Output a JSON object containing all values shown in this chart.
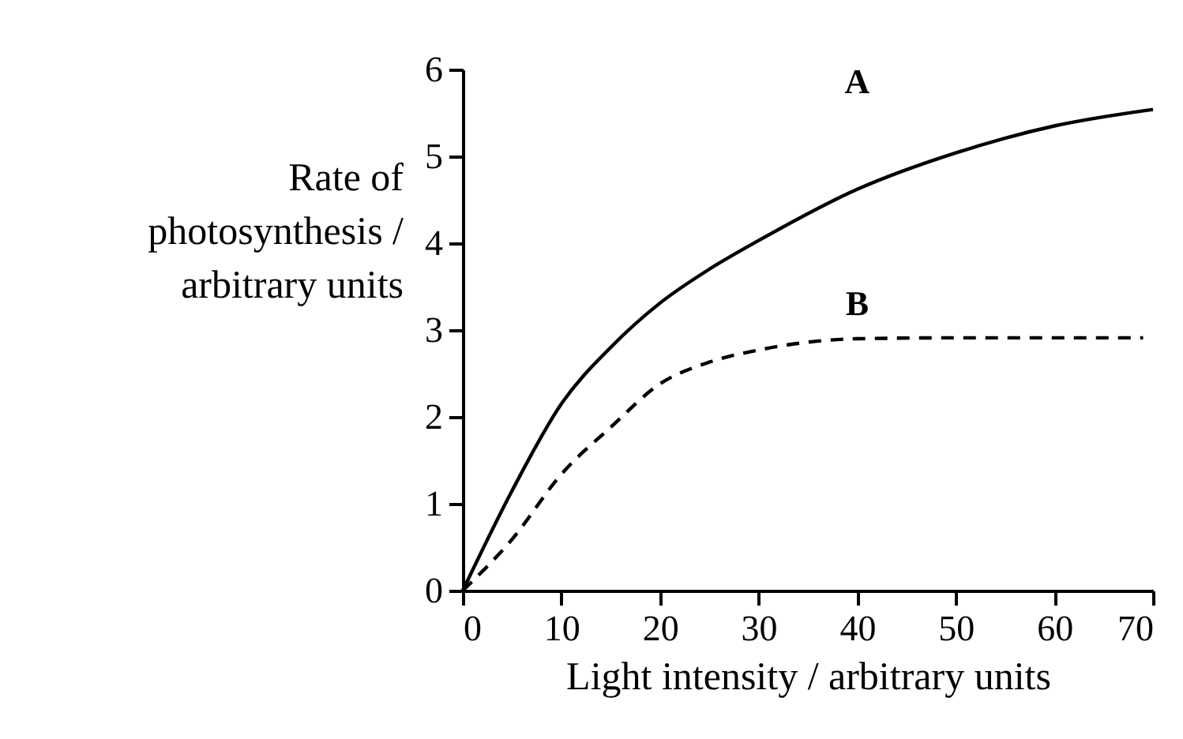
{
  "chart_data": {
    "type": "line",
    "xlabel": "Light intensity / arbitrary units",
    "ylabel": "Rate of\nphotosynthesis /\narbitrary units",
    "xlim": [
      0,
      70
    ],
    "ylim": [
      0,
      6
    ],
    "xticks": [
      0,
      10,
      20,
      30,
      40,
      50,
      60,
      70
    ],
    "yticks": [
      0,
      1,
      2,
      3,
      4,
      5,
      6
    ],
    "grid": false,
    "marker": "none",
    "series": [
      {
        "name": "A",
        "color": "#000000",
        "line_style": "solid",
        "x": [
          0,
          5,
          10,
          15,
          20,
          25,
          30,
          40,
          50,
          60,
          70
        ],
        "values": [
          0,
          1.15,
          2.15,
          2.8,
          3.31,
          3.7,
          4.03,
          4.62,
          5.04,
          5.35,
          5.54
        ]
      },
      {
        "name": "B",
        "color": "#000000",
        "line_style": "dashed",
        "x": [
          0,
          5,
          10,
          15,
          20,
          25,
          30,
          35,
          40,
          50,
          69
        ],
        "values": [
          0,
          0.59,
          1.34,
          1.88,
          2.38,
          2.63,
          2.77,
          2.86,
          2.9,
          2.91,
          2.91
        ]
      }
    ]
  }
}
